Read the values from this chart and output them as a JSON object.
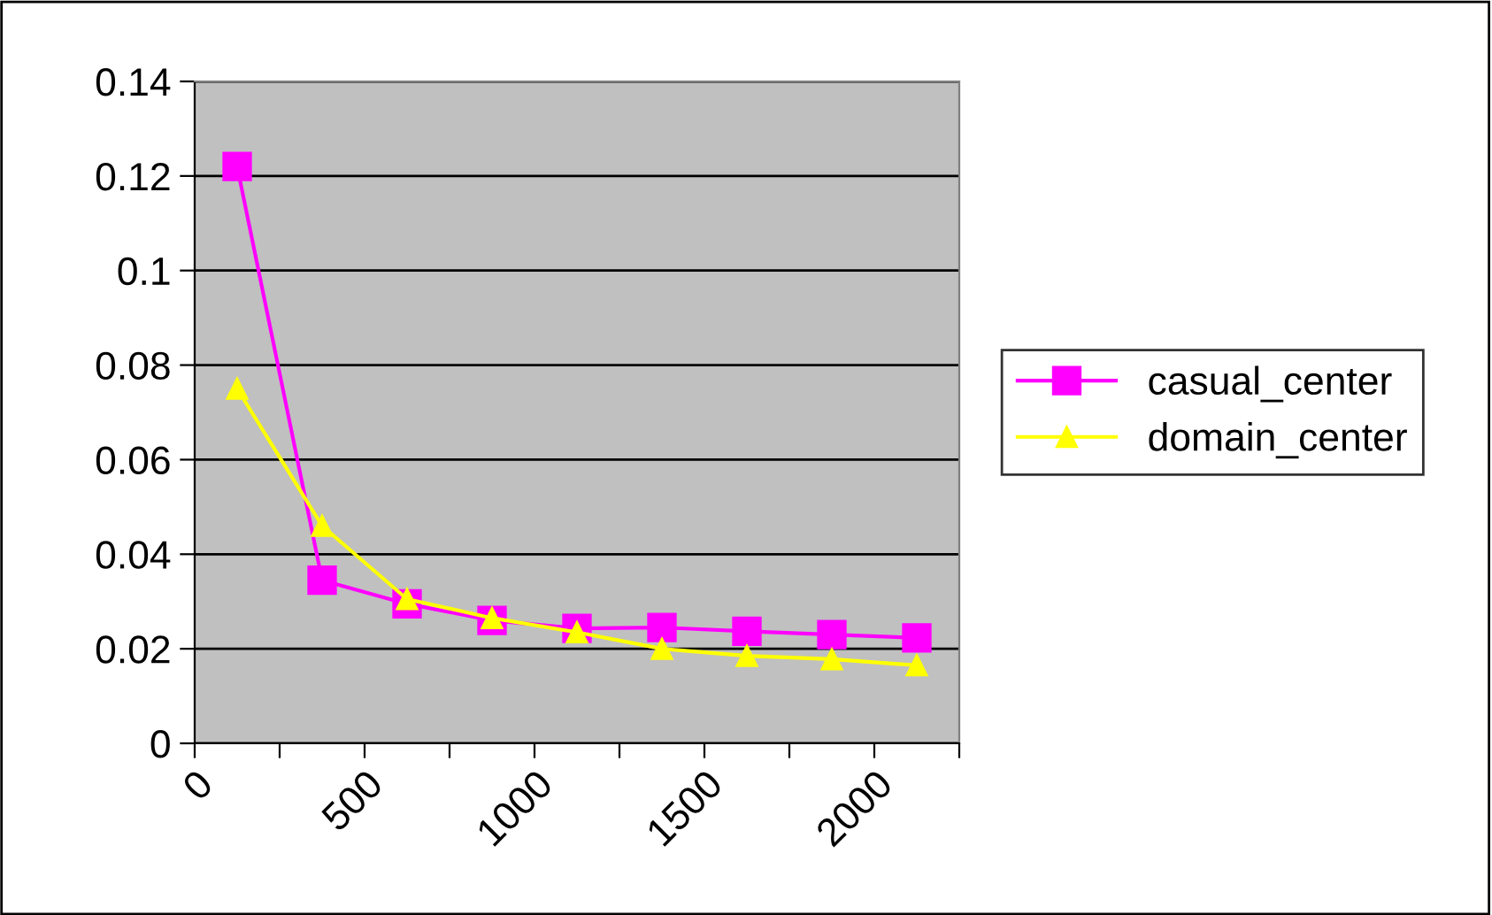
{
  "chart_data": {
    "type": "line",
    "x": [
      125,
      375,
      625,
      875,
      1125,
      1375,
      1625,
      1875,
      2125
    ],
    "series": [
      {
        "name": "casual_center",
        "color": "#ff00ff",
        "marker": "square",
        "values": [
          0.122,
          0.0345,
          0.0295,
          0.026,
          0.0243,
          0.0245,
          0.0237,
          0.023,
          0.0223
        ]
      },
      {
        "name": "domain_center",
        "color": "#ffff00",
        "marker": "triangle",
        "values": [
          0.075,
          0.046,
          0.0305,
          0.0265,
          0.0235,
          0.02,
          0.0185,
          0.0178,
          0.0165
        ]
      }
    ],
    "xlim": [
      0,
      2250
    ],
    "xticks": [
      0,
      {
        "value": 250,
        "label": null
      },
      500,
      {
        "value": 750,
        "label": null
      },
      1000,
      {
        "value": 1250,
        "label": null
      },
      1500,
      {
        "value": 1750,
        "label": null
      },
      2000,
      {
        "value": 2250,
        "label": null
      }
    ],
    "ylim": [
      0,
      0.14
    ],
    "yticks": [
      0,
      0.02,
      0.04,
      0.06,
      0.08,
      0.1,
      0.12,
      0.14
    ],
    "grid": "y",
    "legend": "right",
    "line_style": "solid"
  }
}
